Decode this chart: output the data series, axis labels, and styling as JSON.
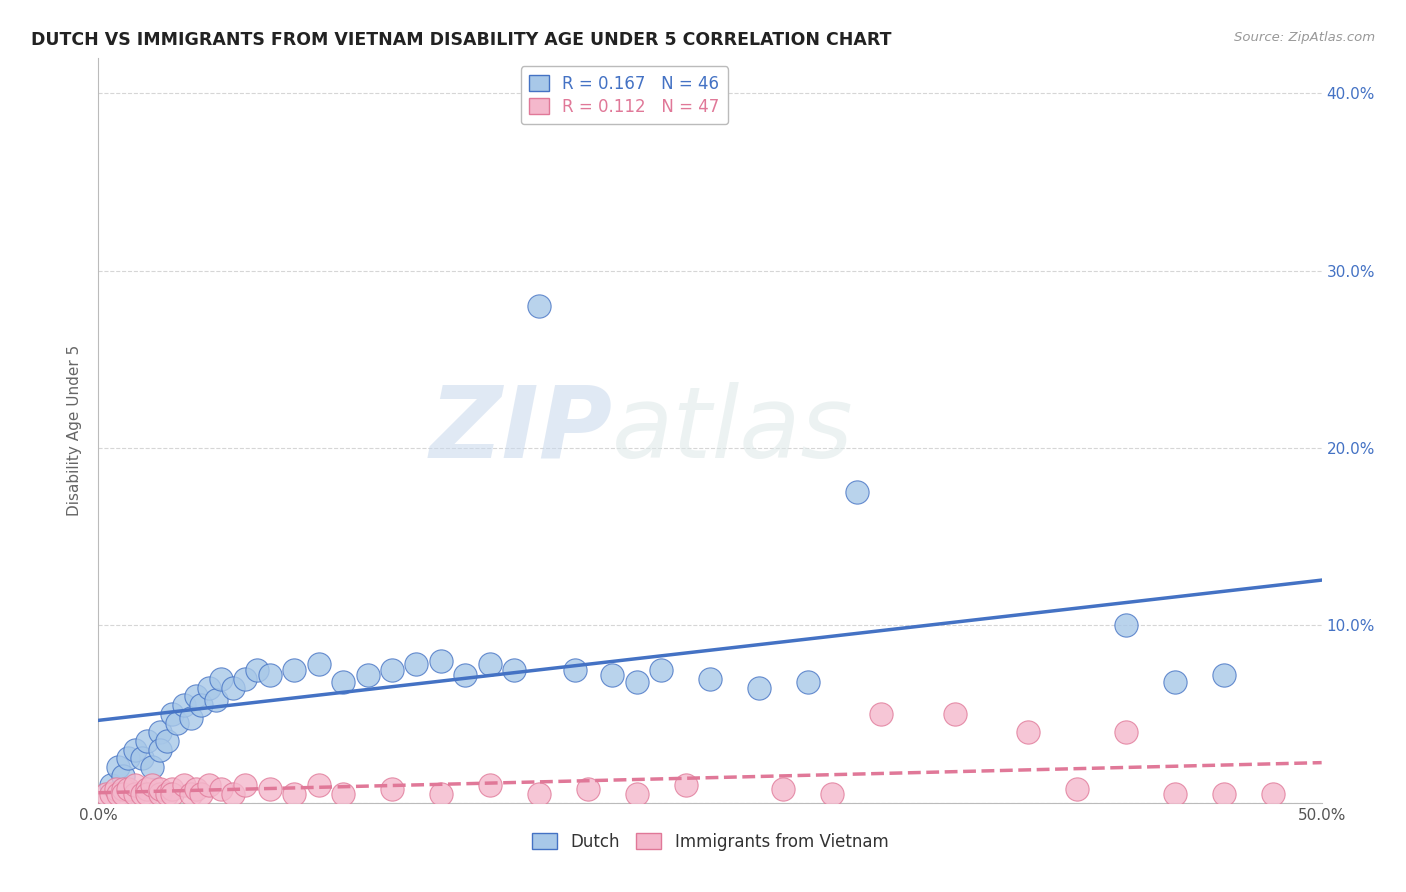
{
  "title": "DUTCH VS IMMIGRANTS FROM VIETNAM DISABILITY AGE UNDER 5 CORRELATION CHART",
  "source": "Source: ZipAtlas.com",
  "ylabel": "Disability Age Under 5",
  "xlim": [
    0.0,
    0.5
  ],
  "ylim": [
    0.0,
    0.42
  ],
  "xticks": [
    0.0,
    0.1,
    0.2,
    0.3,
    0.4,
    0.5
  ],
  "xticklabels": [
    "0.0%",
    "",
    "",
    "",
    "",
    "50.0%"
  ],
  "yticks": [
    0.0,
    0.1,
    0.2,
    0.3,
    0.4
  ],
  "yticklabels_left": [
    "",
    "",
    "",
    "",
    ""
  ],
  "yticklabels_right": [
    "",
    "10.0%",
    "20.0%",
    "30.0%",
    "40.0%"
  ],
  "dutch_color": "#a8c8e8",
  "vietnam_color": "#f4b8cc",
  "dutch_line_color": "#4472c4",
  "vietnam_line_color": "#e07898",
  "dutch_R": 0.167,
  "dutch_N": 46,
  "vietnam_R": 0.112,
  "vietnam_N": 47,
  "watermark_zip": "ZIP",
  "watermark_atlas": "atlas",
  "background_color": "#ffffff",
  "grid_color": "#cccccc",
  "dutch_scatter_x": [
    0.005,
    0.008,
    0.01,
    0.012,
    0.015,
    0.018,
    0.02,
    0.022,
    0.025,
    0.025,
    0.028,
    0.03,
    0.032,
    0.035,
    0.038,
    0.04,
    0.042,
    0.045,
    0.048,
    0.05,
    0.055,
    0.06,
    0.065,
    0.07,
    0.08,
    0.09,
    0.1,
    0.11,
    0.12,
    0.13,
    0.14,
    0.15,
    0.16,
    0.17,
    0.18,
    0.195,
    0.21,
    0.22,
    0.23,
    0.25,
    0.27,
    0.29,
    0.31,
    0.42,
    0.44,
    0.46
  ],
  "dutch_scatter_y": [
    0.01,
    0.02,
    0.015,
    0.025,
    0.03,
    0.025,
    0.035,
    0.02,
    0.04,
    0.03,
    0.035,
    0.05,
    0.045,
    0.055,
    0.048,
    0.06,
    0.055,
    0.065,
    0.058,
    0.07,
    0.065,
    0.07,
    0.075,
    0.072,
    0.075,
    0.078,
    0.068,
    0.072,
    0.075,
    0.078,
    0.08,
    0.072,
    0.078,
    0.075,
    0.28,
    0.075,
    0.072,
    0.068,
    0.075,
    0.07,
    0.065,
    0.068,
    0.175,
    0.1,
    0.068,
    0.072
  ],
  "vietnam_scatter_x": [
    0.003,
    0.005,
    0.007,
    0.008,
    0.01,
    0.01,
    0.012,
    0.015,
    0.015,
    0.018,
    0.02,
    0.02,
    0.022,
    0.025,
    0.025,
    0.028,
    0.03,
    0.03,
    0.035,
    0.038,
    0.04,
    0.042,
    0.045,
    0.05,
    0.055,
    0.06,
    0.07,
    0.08,
    0.09,
    0.1,
    0.12,
    0.14,
    0.16,
    0.18,
    0.2,
    0.22,
    0.24,
    0.28,
    0.3,
    0.32,
    0.35,
    0.38,
    0.4,
    0.42,
    0.44,
    0.46,
    0.48
  ],
  "vietnam_scatter_y": [
    0.005,
    0.005,
    0.008,
    0.005,
    0.008,
    0.005,
    0.008,
    0.005,
    0.01,
    0.005,
    0.008,
    0.005,
    0.01,
    0.005,
    0.008,
    0.005,
    0.008,
    0.005,
    0.01,
    0.005,
    0.008,
    0.005,
    0.01,
    0.008,
    0.005,
    0.01,
    0.008,
    0.005,
    0.01,
    0.005,
    0.008,
    0.005,
    0.01,
    0.005,
    0.008,
    0.005,
    0.01,
    0.008,
    0.005,
    0.05,
    0.05,
    0.04,
    0.008,
    0.04,
    0.005,
    0.005,
    0.005
  ]
}
